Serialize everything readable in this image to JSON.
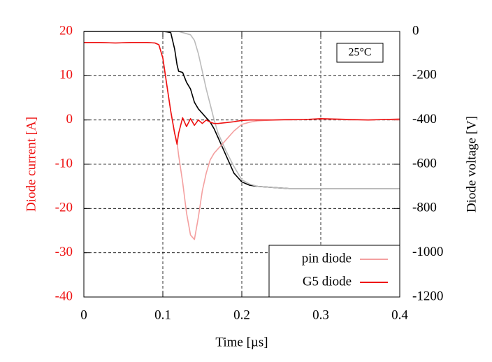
{
  "chart_data": {
    "type": "line",
    "xlabel": "Time [µs]",
    "ylabel": "Diode current [A]",
    "y2label": "Diode voltage [V]",
    "annotation": "25°C",
    "x": [
      0,
      0.02,
      0.04,
      0.06,
      0.08,
      0.09,
      0.095,
      0.1,
      0.105,
      0.11,
      0.115,
      0.118,
      0.12,
      0.125,
      0.13,
      0.135,
      0.14,
      0.145,
      0.15,
      0.155,
      0.16,
      0.165,
      0.17,
      0.175,
      0.18,
      0.19,
      0.2,
      0.21,
      0.22,
      0.24,
      0.26,
      0.28,
      0.3,
      0.32,
      0.34,
      0.36,
      0.38,
      0.4
    ],
    "series": [
      {
        "name": "pin diode",
        "color": "#f4a0a0",
        "values": [
          17.5,
          17.5,
          17.4,
          17.5,
          17.5,
          17.4,
          17,
          14,
          8,
          2,
          -3,
          -5,
          -8,
          -14,
          -21,
          -26,
          -27,
          -22,
          -16,
          -12,
          -9,
          -7.5,
          -6.5,
          -5.5,
          -4.5,
          -2.5,
          -1,
          -0.5,
          -0.2,
          0,
          0,
          0.1,
          0.2,
          0.1,
          0,
          0,
          0.1,
          0
        ]
      },
      {
        "name": "G5 diode",
        "color": "#ee1111",
        "values": [
          17.5,
          17.5,
          17.4,
          17.5,
          17.5,
          17.4,
          17,
          14,
          8,
          2,
          -3,
          -5.5,
          -3,
          0.5,
          -1.5,
          0.3,
          -1.2,
          0,
          -0.8,
          0,
          -0.5,
          -0.8,
          -0.8,
          -0.7,
          -0.6,
          -0.4,
          -0.1,
          0,
          0,
          0,
          0.1,
          0.1,
          0.3,
          0.2,
          0.1,
          0,
          0.1,
          0.2
        ]
      },
      {
        "color": "#000000",
        "axis": "y2",
        "values": [
          0,
          0,
          0,
          0,
          0,
          0,
          0,
          0,
          -2,
          -5,
          -80,
          -150,
          -180,
          -185,
          -230,
          -260,
          -320,
          -350,
          -370,
          -390,
          -410,
          -440,
          -480,
          -520,
          -560,
          -640,
          -680,
          -695,
          -700,
          -705,
          -710,
          -710,
          -710,
          -710,
          -710,
          -710,
          -710,
          -710
        ]
      },
      {
        "color": "#bbbbbb",
        "axis": "y2",
        "values": [
          0,
          0,
          0,
          0,
          0,
          0,
          0,
          0,
          0,
          0,
          0,
          0,
          0,
          -5,
          -10,
          -15,
          -40,
          -100,
          -180,
          -260,
          -330,
          -400,
          -460,
          -500,
          -540,
          -610,
          -670,
          -690,
          -700,
          -705,
          -710,
          -710,
          -710,
          -710,
          -710,
          -710,
          -710,
          -710
        ]
      }
    ],
    "xlim": [
      0,
      0.4
    ],
    "xticks": [
      0,
      0.1,
      0.2,
      0.3,
      0.4
    ],
    "ylim": [
      -40,
      20
    ],
    "yticks": [
      -40,
      -30,
      -20,
      -10,
      0,
      10,
      20
    ],
    "y2lim": [
      -1200,
      0
    ],
    "y2ticks": [
      -1200,
      -1000,
      -800,
      -600,
      -400,
      -200,
      0
    ],
    "grid": true,
    "legend": "lower right"
  }
}
